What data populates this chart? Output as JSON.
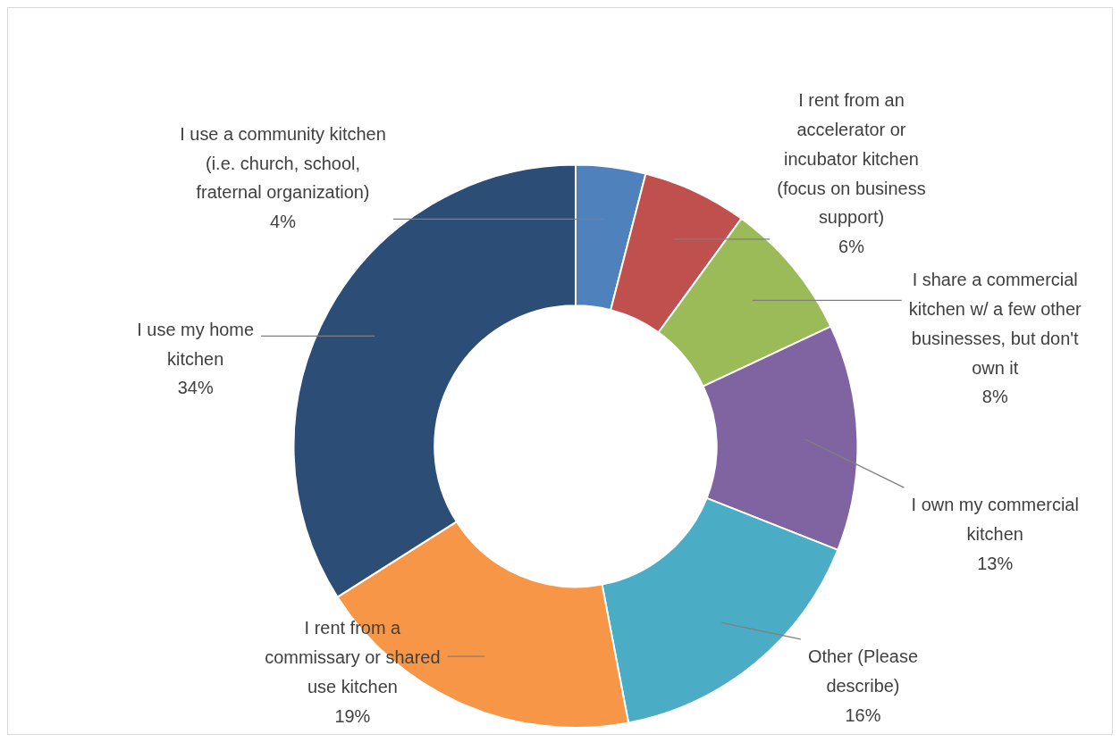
{
  "chart_data": {
    "type": "donut",
    "categories": [
      "I use a community kitchen (i.e. church, school, fraternal organization)",
      "I rent from an accelerator or incubator kitchen (focus on business support)",
      "I share a commercial kitchen w/ a few other businesses, but don't own it",
      "I own my commercial kitchen",
      "Other (Please describe)",
      "I rent from a commissary or shared use kitchen",
      "I use my home kitchen"
    ],
    "values": [
      4,
      6,
      8,
      13,
      16,
      19,
      34
    ],
    "colors": [
      "#4f81bd",
      "#c0504d",
      "#9bbb59",
      "#8064a2",
      "#4bacc6",
      "#f79646",
      "#2c4d75"
    ],
    "value_labels": [
      "4%",
      "6%",
      "8%",
      "13%",
      "16%",
      "19%",
      "34%"
    ],
    "legend": false
  }
}
